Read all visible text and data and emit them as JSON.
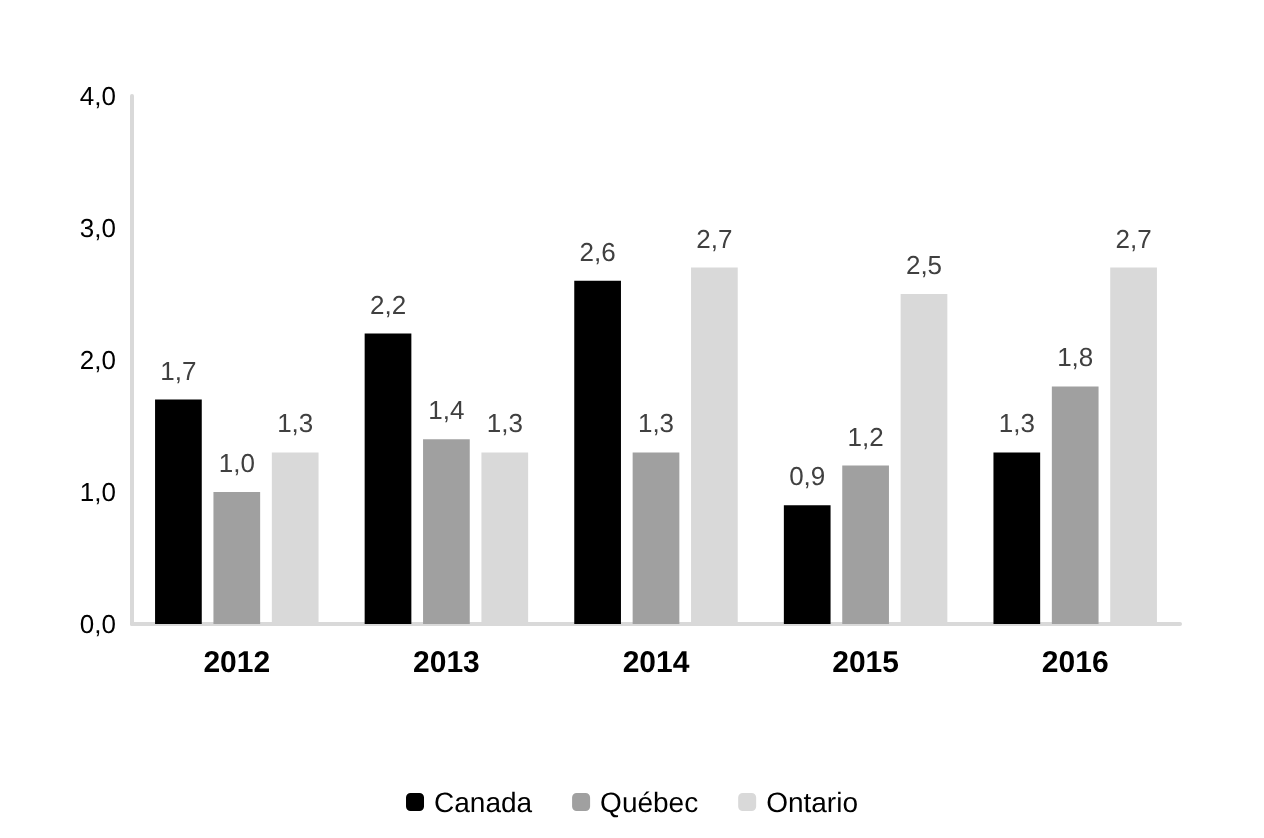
{
  "chart_data": {
    "type": "bar",
    "categories": [
      "2012",
      "2013",
      "2014",
      "2015",
      "2016"
    ],
    "series": [
      {
        "name": "Canada",
        "color": "#000000",
        "values": [
          1.7,
          2.2,
          2.6,
          0.9,
          1.3
        ],
        "value_labels": [
          "1,7",
          "2,2",
          "2,6",
          "0,9",
          "1,3"
        ]
      },
      {
        "name": "Québec",
        "color": "#a0a0a0",
        "values": [
          1.0,
          1.4,
          1.3,
          1.2,
          1.8
        ],
        "value_labels": [
          "1,0",
          "1,4",
          "1,3",
          "1,2",
          "1,8"
        ]
      },
      {
        "name": "Ontario",
        "color": "#d9d9d9",
        "values": [
          1.3,
          1.3,
          2.7,
          2.5,
          2.7
        ],
        "value_labels": [
          "1,3",
          "1,3",
          "2,7",
          "2,5",
          "2,7"
        ]
      }
    ],
    "ylim": [
      0,
      4
    ],
    "yticks": [
      {
        "value": 0,
        "label": "0,0"
      },
      {
        "value": 1,
        "label": "1,0"
      },
      {
        "value": 2,
        "label": "2,0"
      },
      {
        "value": 3,
        "label": "3,0"
      },
      {
        "value": 4,
        "label": "4,0"
      }
    ],
    "grid": false,
    "legend": "bottom"
  }
}
